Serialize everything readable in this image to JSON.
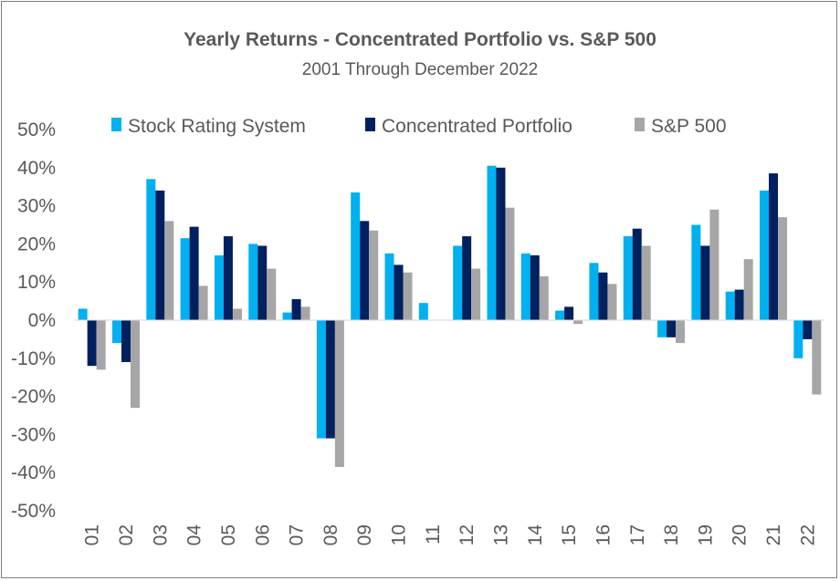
{
  "chart_data": {
    "type": "bar",
    "title": "Yearly Returns - Concentrated Portfolio vs. S&P 500",
    "subtitle": "2001 Through December 2022",
    "categories": [
      "01",
      "02",
      "03",
      "04",
      "05",
      "06",
      "07",
      "08",
      "09",
      "10",
      "11",
      "12",
      "13",
      "14",
      "15",
      "16",
      "17",
      "18",
      "19",
      "20",
      "21",
      "22"
    ],
    "series": [
      {
        "name": "Stock Rating System",
        "color": "#00b0f0",
        "values": [
          3,
          -6,
          37,
          21.5,
          17,
          20,
          2,
          -31,
          33.5,
          17.5,
          4.5,
          19.5,
          40.5,
          17.5,
          2.5,
          15,
          22,
          -4.5,
          25,
          7.5,
          34,
          -10
        ]
      },
      {
        "name": "Concentrated Portfolio",
        "color": "#002060",
        "values": [
          -12,
          -11,
          34,
          24.5,
          22,
          19.5,
          5.5,
          -31,
          26,
          14.5,
          0,
          22,
          40,
          17,
          3.5,
          12.5,
          24,
          -4.5,
          19.5,
          8,
          38.5,
          -5
        ]
      },
      {
        "name": "S&P 500",
        "color": "#a6a6a6",
        "values": [
          -13,
          -23,
          26,
          9,
          3,
          13.5,
          3.5,
          -38.5,
          23.5,
          12.5,
          0,
          13.5,
          29.5,
          11.5,
          -1,
          9.5,
          19.5,
          -6,
          29,
          16,
          27,
          -19.5
        ]
      }
    ],
    "ylim": [
      -50,
      50
    ],
    "yticks": [
      "-50%",
      "-40%",
      "-30%",
      "-20%",
      "-10%",
      "0%",
      "10%",
      "20%",
      "30%",
      "40%",
      "50%"
    ],
    "grid": false,
    "legend_position": "top"
  }
}
